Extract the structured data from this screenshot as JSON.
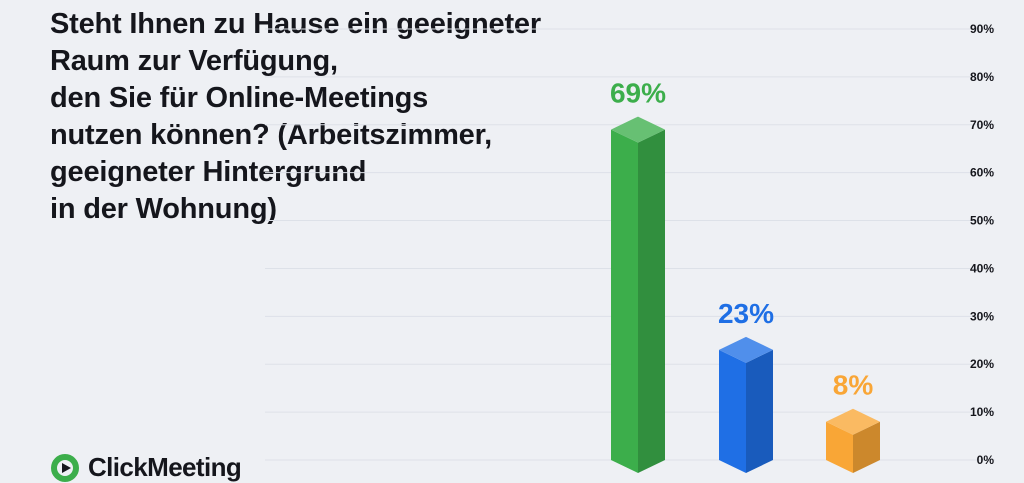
{
  "chart_data": {
    "type": "bar",
    "title": "Steht Ihnen zu Hause ein geeigneter\nRaum zur Verfügung,\nden Sie für Online-Meetings\n nutzen können? (Arbeitszimmer,\ngeeigneter Hintergrund\nin der Wohnung)",
    "categories": [
      "",
      "",
      ""
    ],
    "values": [
      69,
      23,
      8
    ],
    "value_labels": [
      "69%",
      "23%",
      "8%"
    ],
    "colors": [
      "#3cae4b",
      "#1f6fe5",
      "#f9a636"
    ],
    "ylim": [
      0,
      90
    ],
    "yticks": [
      0,
      10,
      20,
      30,
      40,
      50,
      60,
      70,
      80,
      90
    ],
    "ytick_labels": [
      "0%",
      "10%",
      "20%",
      "30%",
      "40%",
      "50%",
      "60%",
      "70%",
      "80%",
      "90%"
    ],
    "y_axis_position": "right",
    "grid": true
  },
  "brand": {
    "name": "ClickMeeting",
    "logo_icon": "clickmeeting-logo-icon",
    "color": "#3cae4b"
  }
}
